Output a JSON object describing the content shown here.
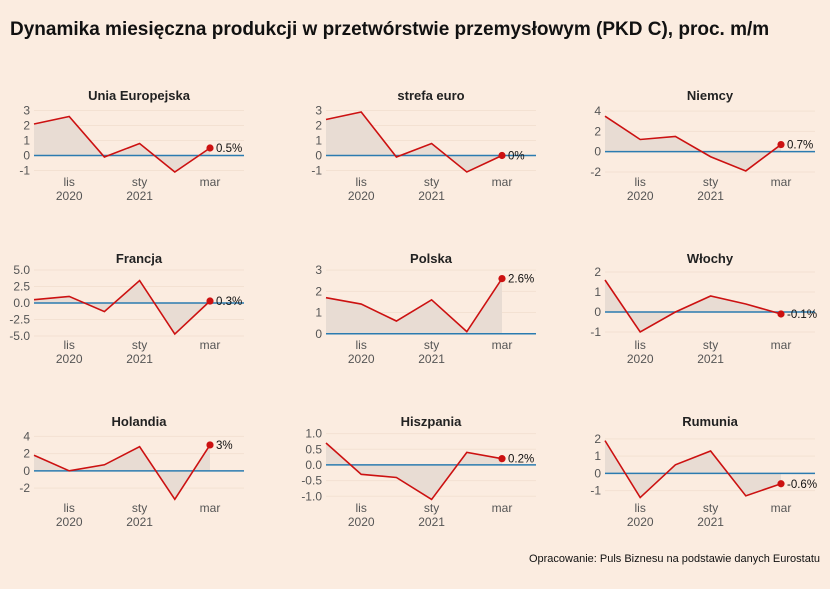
{
  "title": "Dynamika miesięczna produkcji w przetwórstwie przemysłowym (PKD C), proc. m/m",
  "source": "Opracowanie: Puls Biznesu na podstawie danych Eurostatu",
  "colors": {
    "background": "#fbece0",
    "line": "#cc1111",
    "area": "#e8dcd3",
    "zero_line": "#2b7bb0",
    "grid": "#f3e1d2"
  },
  "chart_data": [
    {
      "type": "area",
      "title": "Unia Europejska",
      "x": [
        "2020-10",
        "2020-11",
        "2020-12",
        "2021-01",
        "2021-02",
        "2021-03"
      ],
      "values": [
        2.1,
        2.6,
        -0.1,
        0.8,
        -1.1,
        0.5
      ],
      "end_label": "0.5%",
      "ylim": [
        -1.3,
        3.3
      ],
      "yticks": [
        "3",
        "2",
        "1",
        "0",
        "-1"
      ],
      "xticks": [
        {
          "month": "lis",
          "year": "2020"
        },
        {
          "month": "sty",
          "year": "2021"
        },
        {
          "month": "mar",
          "year": ""
        }
      ]
    },
    {
      "type": "area",
      "title": "strefa euro",
      "x": [
        "2020-10",
        "2020-11",
        "2020-12",
        "2021-01",
        "2021-02",
        "2021-03"
      ],
      "values": [
        2.4,
        2.9,
        -0.1,
        0.8,
        -1.1,
        0.0
      ],
      "end_label": "0%",
      "ylim": [
        -1.3,
        3.3
      ],
      "yticks": [
        "3",
        "2",
        "1",
        "0",
        "-1"
      ],
      "xticks": [
        {
          "month": "lis",
          "year": "2020"
        },
        {
          "month": "sty",
          "year": "2021"
        },
        {
          "month": "mar",
          "year": ""
        }
      ]
    },
    {
      "type": "area",
      "title": "Niemcy",
      "x": [
        "2020-10",
        "2020-11",
        "2020-12",
        "2021-01",
        "2021-02",
        "2021-03"
      ],
      "values": [
        3.5,
        1.2,
        1.5,
        -0.5,
        -1.9,
        0.7
      ],
      "end_label": "0.7%",
      "ylim": [
        -2.3,
        4.5
      ],
      "yticks": [
        "4",
        "2",
        "0",
        "-2"
      ],
      "xticks": [
        {
          "month": "lis",
          "year": "2020"
        },
        {
          "month": "sty",
          "year": "2021"
        },
        {
          "month": "mar",
          "year": ""
        }
      ]
    },
    {
      "type": "area",
      "title": "Francja",
      "x": [
        "2020-10",
        "2020-11",
        "2020-12",
        "2021-01",
        "2021-02",
        "2021-03"
      ],
      "values": [
        0.5,
        1.0,
        -1.3,
        3.4,
        -4.7,
        0.3
      ],
      "end_label": "0.3%",
      "ylim": [
        -5.3,
        5.3
      ],
      "yticks": [
        "5.0",
        "2.5",
        "0.0",
        "-2.5",
        "-5.0"
      ],
      "xticks": [
        {
          "month": "lis",
          "year": "2020"
        },
        {
          "month": "sty",
          "year": "2021"
        },
        {
          "month": "mar",
          "year": ""
        }
      ]
    },
    {
      "type": "area",
      "title": "Polska",
      "x": [
        "2020-10",
        "2020-11",
        "2020-12",
        "2021-01",
        "2021-02",
        "2021-03"
      ],
      "values": [
        1.7,
        1.4,
        0.6,
        1.6,
        0.1,
        2.6
      ],
      "end_label": "2.6%",
      "ylim": [
        -0.2,
        3.1
      ],
      "yticks": [
        "3",
        "2",
        "1",
        "0"
      ],
      "xticks": [
        {
          "month": "lis",
          "year": "2020"
        },
        {
          "month": "sty",
          "year": "2021"
        },
        {
          "month": "mar",
          "year": ""
        }
      ]
    },
    {
      "type": "area",
      "title": "Włochy",
      "x": [
        "2020-10",
        "2020-11",
        "2020-12",
        "2021-01",
        "2021-02",
        "2021-03"
      ],
      "values": [
        1.6,
        -1.0,
        0.0,
        0.8,
        0.4,
        -0.1
      ],
      "end_label": "-0.1%",
      "ylim": [
        -1.3,
        2.2
      ],
      "yticks": [
        "2",
        "1",
        "0",
        "-1"
      ],
      "xticks": [
        {
          "month": "lis",
          "year": "2020"
        },
        {
          "month": "sty",
          "year": "2021"
        },
        {
          "month": "mar",
          "year": ""
        }
      ]
    },
    {
      "type": "area",
      "title": "Holandia",
      "x": [
        "2020-10",
        "2020-11",
        "2020-12",
        "2021-01",
        "2021-02",
        "2021-03"
      ],
      "values": [
        1.8,
        0.0,
        0.7,
        2.8,
        -3.3,
        3.0
      ],
      "end_label": "3%",
      "ylim": [
        -3.5,
        4.5
      ],
      "yticks": [
        "4",
        "2",
        "0",
        "-2"
      ],
      "xticks": [
        {
          "month": "lis",
          "year": "2020"
        },
        {
          "month": "sty",
          "year": "2021"
        },
        {
          "month": "mar",
          "year": ""
        }
      ]
    },
    {
      "type": "area",
      "title": "Hiszpania",
      "x": [
        "2020-10",
        "2020-11",
        "2020-12",
        "2021-01",
        "2021-02",
        "2021-03"
      ],
      "values": [
        0.7,
        -0.3,
        -0.4,
        -1.1,
        0.4,
        0.2
      ],
      "end_label": "0.2%",
      "ylim": [
        -1.15,
        1.05
      ],
      "yticks": [
        "1.0",
        "0.5",
        "0.0",
        "-0.5",
        "-1.0"
      ],
      "xticks": [
        {
          "month": "lis",
          "year": "2020"
        },
        {
          "month": "sty",
          "year": "2021"
        },
        {
          "month": "mar",
          "year": ""
        }
      ]
    },
    {
      "type": "area",
      "title": "Rumunia",
      "x": [
        "2020-10",
        "2020-11",
        "2020-12",
        "2021-01",
        "2021-02",
        "2021-03"
      ],
      "values": [
        1.9,
        -1.4,
        0.5,
        1.3,
        -1.3,
        -0.6
      ],
      "end_label": "-0.6%",
      "ylim": [
        -1.6,
        2.4
      ],
      "yticks": [
        "2",
        "1",
        "0",
        "-1"
      ],
      "xticks": [
        {
          "month": "lis",
          "year": "2020"
        },
        {
          "month": "sty",
          "year": "2021"
        },
        {
          "month": "mar",
          "year": ""
        }
      ]
    }
  ]
}
